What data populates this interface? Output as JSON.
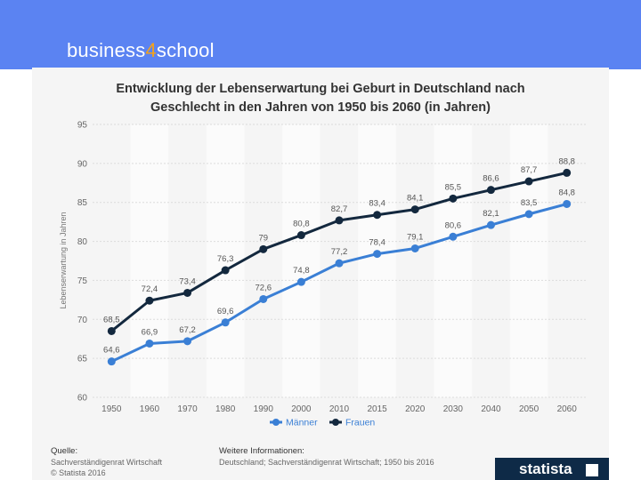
{
  "brand": {
    "part1": "business",
    "part2": "4",
    "part3": "school"
  },
  "colors": {
    "banner": "#5b83f2",
    "maenner": "#3a7fd5",
    "frauen": "#13283e",
    "accent": "#f4a21a"
  },
  "chart_data": {
    "type": "line",
    "title_line1": "Entwicklung der Lebenserwartung bei Geburt in Deutschland nach",
    "title_line2": "Geschlecht in den Jahren von 1950 bis 2060 (in Jahren)",
    "xlabel": "",
    "ylabel": "Lebenserwartung in Jahren",
    "ylim": [
      60,
      95
    ],
    "yticks": [
      "60",
      "65",
      "70",
      "75",
      "80",
      "85",
      "90",
      "95"
    ],
    "categories": [
      "1950",
      "1960",
      "1970",
      "1980",
      "1990",
      "2000",
      "2010",
      "2015",
      "2020",
      "2030",
      "2040",
      "2050",
      "2060"
    ],
    "series": [
      {
        "name": "Männer",
        "values": [
          64.6,
          66.9,
          67.2,
          69.6,
          72.6,
          74.8,
          77.2,
          78.4,
          79.1,
          80.6,
          82.1,
          83.5,
          84.8
        ],
        "labels": [
          "64,6",
          "66,9",
          "67,2",
          "69,6",
          "72,6",
          "74,8",
          "77,2",
          "78,4",
          "79,1",
          "80,6",
          "82,1",
          "83,5",
          "84,8"
        ]
      },
      {
        "name": "Frauen",
        "values": [
          68.5,
          72.4,
          73.4,
          76.3,
          79,
          80.8,
          82.7,
          83.4,
          84.1,
          85.5,
          86.6,
          87.7,
          88.8
        ],
        "labels": [
          "68,5",
          "72,4",
          "73,4",
          "76,3",
          "79",
          "80,8",
          "82,7",
          "83,4",
          "84,1",
          "85,5",
          "86,6",
          "87,7",
          "88,8"
        ]
      }
    ],
    "grid": true,
    "legend": "bottom-center"
  },
  "footer": {
    "source_head": "Quelle:",
    "source_line1": "Sachverständigenrat Wirtschaft",
    "source_line2": "© Statista 2016",
    "info_head": "Weitere Informationen:",
    "info_line1": "Deutschland; Sachverständigenrat Wirtschaft; 1950 bis 2016"
  },
  "logo": {
    "text": "statista"
  }
}
